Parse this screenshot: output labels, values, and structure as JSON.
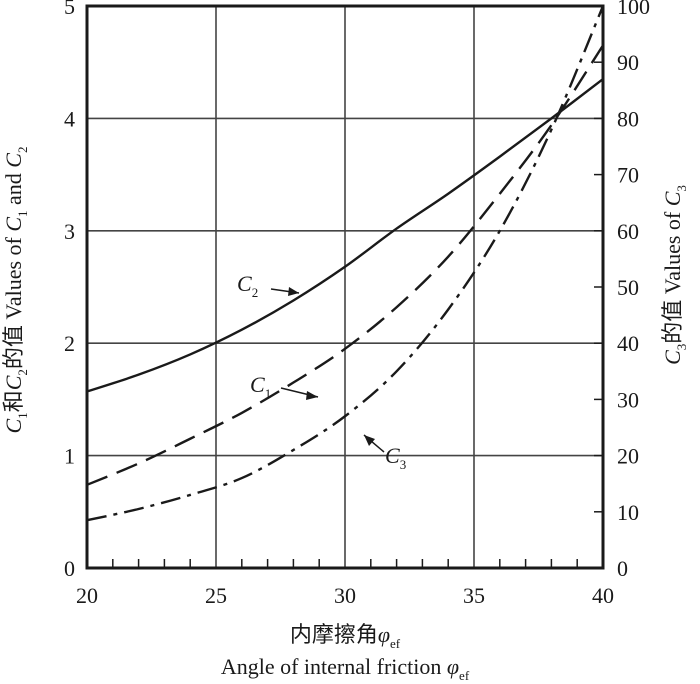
{
  "chart_data": {
    "type": "line",
    "x_range": [
      20,
      40
    ],
    "x_ticks": [
      "20",
      "25",
      "30",
      "35",
      "40"
    ],
    "y_left_range": [
      0,
      5
    ],
    "y_left_ticks": [
      "0",
      "1",
      "2",
      "3",
      "4",
      "5"
    ],
    "y_right_range": [
      0,
      100
    ],
    "y_right_ticks": [
      "0",
      "10",
      "20",
      "30",
      "40",
      "50",
      "60",
      "70",
      "80",
      "90",
      "100"
    ],
    "grid": true,
    "xlabel_zh": "内摩擦角",
    "xlabel_en": "Angle of internal friction ",
    "x_symbol": "φ",
    "x_symbol_sub": "ef",
    "ylabel_left": {
      "c1": "C",
      "c1_sub": "1",
      "zh": "和",
      "c2": "C",
      "c2_sub": "2",
      "text": "的值 Values of ",
      "c1b": "C",
      "c1b_sub": "1",
      "and": " and ",
      "c2b": "C",
      "c2b_sub": "2"
    },
    "ylabel_right": {
      "c3": "C",
      "c3_sub": "3",
      "text": "的值 Values of ",
      "c3b": "C",
      "c3b_sub": "3"
    },
    "series": [
      {
        "name": "C2",
        "label": "C",
        "label_sub": "2",
        "axis": "left",
        "style": "solid",
        "x": [
          20,
          22,
          24,
          26,
          28,
          30,
          32,
          34,
          36,
          38,
          40
        ],
        "y": [
          1.57,
          1.72,
          1.9,
          2.12,
          2.38,
          2.68,
          3.02,
          3.33,
          3.66,
          4.0,
          4.35
        ]
      },
      {
        "name": "C1",
        "label": "C",
        "label_sub": "1",
        "axis": "left",
        "style": "dashed",
        "x": [
          20,
          22,
          24,
          26,
          28,
          30,
          32,
          34,
          36,
          38,
          40
        ],
        "y": [
          0.74,
          0.93,
          1.15,
          1.38,
          1.65,
          1.95,
          2.32,
          2.77,
          3.33,
          3.94,
          4.65
        ]
      },
      {
        "name": "C3",
        "label": "C",
        "label_sub": "3",
        "axis": "right",
        "style": "dashdot",
        "x": [
          20,
          22,
          24,
          26,
          28,
          30,
          32,
          34,
          36,
          38,
          40
        ],
        "y": [
          8.5,
          10.5,
          13.0,
          16.0,
          21.0,
          27.0,
          35.0,
          46.0,
          60.0,
          78.0,
          100.0
        ]
      }
    ]
  }
}
